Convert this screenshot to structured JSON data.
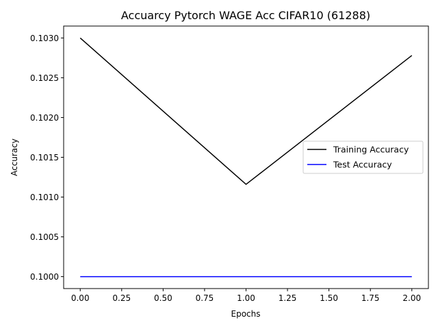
{
  "chart_data": {
    "type": "line",
    "title": "Accuarcy Pytorch WAGE Acc CIFAR10 (61288)",
    "xlabel": "Epochs",
    "ylabel": "Accuracy",
    "xlim": [
      -0.1,
      2.1
    ],
    "ylim": [
      0.09985,
      0.10315
    ],
    "x_ticks": [
      0.0,
      0.25,
      0.5,
      0.75,
      1.0,
      1.25,
      1.5,
      1.75,
      2.0
    ],
    "x_tick_labels": [
      "0.00",
      "0.25",
      "0.50",
      "0.75",
      "1.00",
      "1.25",
      "1.50",
      "1.75",
      "2.00"
    ],
    "y_ticks": [
      0.1,
      0.1005,
      0.101,
      0.1015,
      0.102,
      0.1025,
      0.103
    ],
    "y_tick_labels": [
      "0.1000",
      "0.1005",
      "0.1010",
      "0.1015",
      "0.1020",
      "0.1025",
      "0.1030"
    ],
    "grid": false,
    "legend_position": "center-right",
    "series": [
      {
        "name": "Training Accuracy",
        "color": "#000000",
        "x": [
          0,
          1,
          2
        ],
        "y": [
          0.103,
          0.10116,
          0.10278
        ]
      },
      {
        "name": "Test Accuracy",
        "color": "#0000ff",
        "x": [
          0,
          1,
          2
        ],
        "y": [
          0.1,
          0.1,
          0.1
        ]
      }
    ]
  }
}
